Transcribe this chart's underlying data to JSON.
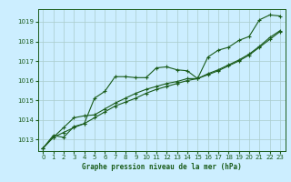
{
  "title": "Graphe pression niveau de la mer (hPa)",
  "bg_color": "#cceeff",
  "line_color": "#1a5c1a",
  "grid_color": "#aacccc",
  "text_color": "#1a5c1a",
  "xlim": [
    -0.5,
    23.5
  ],
  "ylim": [
    1012.4,
    1019.65
  ],
  "yticks": [
    1013,
    1014,
    1015,
    1016,
    1017,
    1018,
    1019
  ],
  "xticks": [
    0,
    1,
    2,
    3,
    4,
    5,
    6,
    7,
    8,
    9,
    10,
    11,
    12,
    13,
    14,
    15,
    16,
    17,
    18,
    19,
    20,
    21,
    22,
    23
  ],
  "series1_x": [
    0,
    1,
    2,
    3,
    4,
    5,
    6,
    7,
    8,
    9,
    10,
    11,
    12,
    13,
    14,
    15,
    16,
    17,
    18,
    19,
    20,
    21,
    22,
    23
  ],
  "series1_y": [
    1012.55,
    1013.2,
    1013.1,
    1013.65,
    1013.8,
    1015.1,
    1015.45,
    1016.2,
    1016.2,
    1016.15,
    1016.15,
    1016.65,
    1016.7,
    1016.55,
    1016.5,
    1016.1,
    1017.2,
    1017.55,
    1017.7,
    1018.05,
    1018.25,
    1019.1,
    1019.35,
    1019.3
  ],
  "series2_x": [
    0,
    1,
    2,
    3,
    4,
    5,
    6,
    7,
    8,
    9,
    10,
    11,
    12,
    13,
    14,
    15,
    16,
    17,
    18,
    19,
    20,
    21,
    22,
    23
  ],
  "series2_y": [
    1012.55,
    1013.1,
    1013.35,
    1013.6,
    1013.8,
    1014.1,
    1014.4,
    1014.7,
    1014.9,
    1015.1,
    1015.35,
    1015.55,
    1015.7,
    1015.85,
    1016.0,
    1016.1,
    1016.3,
    1016.5,
    1016.75,
    1017.0,
    1017.3,
    1017.7,
    1018.1,
    1018.5
  ],
  "series3_x": [
    0,
    1,
    2,
    3,
    4,
    5,
    6,
    7,
    8,
    9,
    10,
    11,
    12,
    13,
    14,
    15,
    16,
    17,
    18,
    19,
    20,
    21,
    22,
    23
  ],
  "series3_y": [
    1012.55,
    1013.1,
    1013.6,
    1014.1,
    1014.2,
    1014.25,
    1014.55,
    1014.85,
    1015.1,
    1015.35,
    1015.55,
    1015.7,
    1015.85,
    1015.95,
    1016.1,
    1016.1,
    1016.35,
    1016.55,
    1016.8,
    1017.05,
    1017.35,
    1017.75,
    1018.2,
    1018.55
  ]
}
